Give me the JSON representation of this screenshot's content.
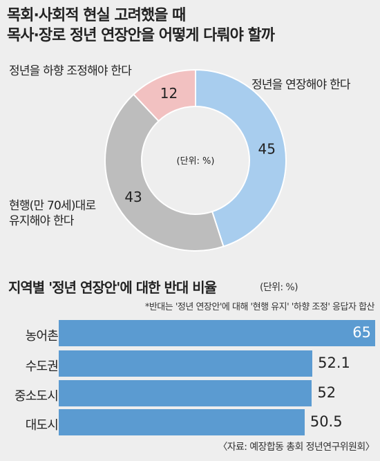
{
  "title": {
    "line1": "목회·사회적 현실 고려했을 때",
    "line2": "목사·장로 정년 연장안을 어떻게 다뤄야 할까"
  },
  "colors": {
    "extend": "#a8cdee",
    "maintain": "#bdbdbd",
    "reduce": "#f2c1c1",
    "bar": "#5b9bd1",
    "background": "#eeeeee"
  },
  "chart_data": [
    {
      "type": "pie",
      "title": "목회·사회적 현실 고려했을 때 목사·장로 정년 연장안을 어떻게 다뤄야 할까",
      "unit_label": "(단위: %)",
      "slices": [
        {
          "label": "정년을 연장해야 한다",
          "value": 45,
          "color": "#a8cdee"
        },
        {
          "label": "현행(만 70세)대로\n유지해야 한다",
          "value": 43,
          "color": "#bdbdbd"
        },
        {
          "label": "정년을 하향 조정해야 한다",
          "value": 12,
          "color": "#f2c1c1"
        }
      ]
    },
    {
      "type": "bar",
      "title": "지역별 '정년 연장안'에 대한 반대 비율",
      "unit_label": "(단위: %)",
      "note": "*반대는 '정년 연장안'에 대해 '현행 유지' '하향 조정' 응답자 합산",
      "categories": [
        "농어촌",
        "수도권",
        "중소도시",
        "대도시"
      ],
      "values": [
        "65",
        "52.1",
        "52",
        "50.5"
      ]
    }
  ],
  "source": "〈자료: 예장합동 총회 정년연구위원회〉"
}
